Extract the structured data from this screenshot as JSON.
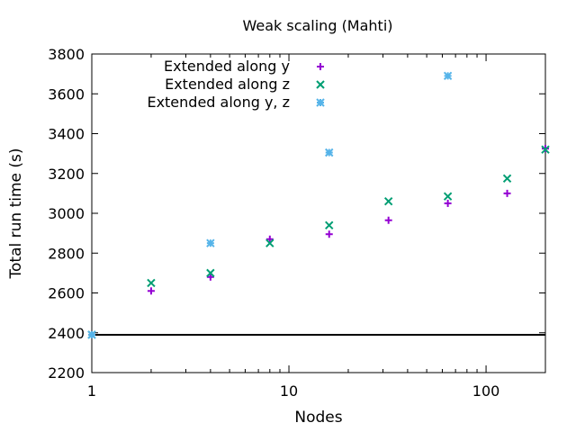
{
  "chart_data": {
    "type": "scatter",
    "title": "Weak scaling (Mahti)",
    "xlabel": "Nodes",
    "ylabel": "Total run time (s)",
    "xscale": "log",
    "xlim": [
      1,
      200
    ],
    "ylim": [
      2200,
      3800
    ],
    "xticks": [
      1,
      10,
      100
    ],
    "xtick_labels": [
      "1",
      "10",
      "100"
    ],
    "yticks": [
      2200,
      2400,
      2600,
      2800,
      3000,
      3200,
      3400,
      3600,
      3800
    ],
    "ytick_labels": [
      "2200",
      "2400",
      "2600",
      "2800",
      "3000",
      "3200",
      "3400",
      "3600",
      "3800"
    ],
    "legend_position": "top-left",
    "reference_line": {
      "y": 2390,
      "color": "#000000"
    },
    "series": [
      {
        "name": "Extended along y",
        "marker": "plus",
        "color": "#9400d3",
        "points": [
          [
            1,
            2390
          ],
          [
            2,
            2610
          ],
          [
            4,
            2680
          ],
          [
            8,
            2870
          ],
          [
            16,
            2895
          ],
          [
            32,
            2965
          ],
          [
            64,
            3050
          ],
          [
            128,
            3100
          ],
          [
            200,
            3325
          ]
        ]
      },
      {
        "name": "Extended along z",
        "marker": "cross",
        "color": "#009e73",
        "points": [
          [
            1,
            2390
          ],
          [
            2,
            2650
          ],
          [
            4,
            2700
          ],
          [
            8,
            2850
          ],
          [
            16,
            2940
          ],
          [
            32,
            3060
          ],
          [
            64,
            3085
          ],
          [
            128,
            3175
          ],
          [
            200,
            3320
          ]
        ]
      },
      {
        "name": "Extended along y, z",
        "marker": "star",
        "color": "#56b4e9",
        "points": [
          [
            1,
            2390
          ],
          [
            4,
            2850
          ],
          [
            16,
            3305
          ],
          [
            64,
            3690
          ]
        ]
      }
    ]
  }
}
